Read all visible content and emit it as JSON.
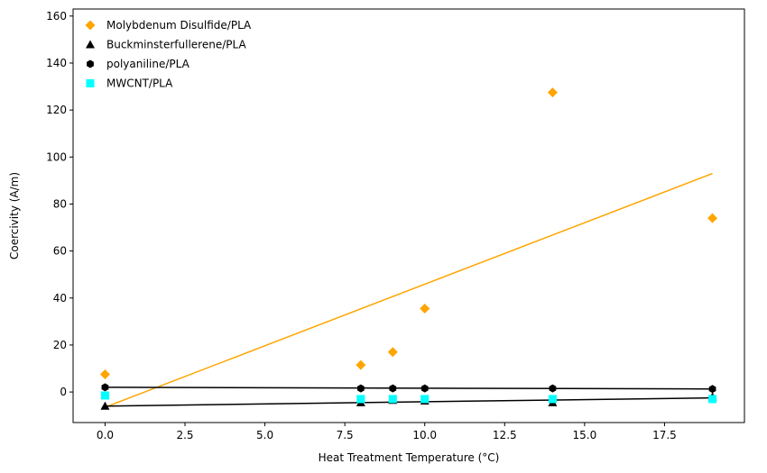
{
  "chart_data": {
    "type": "scatter",
    "title": "",
    "xlabel": "Heat Treatment Temperature (°C)",
    "ylabel": "Coercivity (A/m)",
    "xlim": [
      -1,
      20
    ],
    "ylim": [
      -13,
      163
    ],
    "xticks": [
      0,
      2.5,
      5,
      7.5,
      10,
      12.5,
      15,
      17.5
    ],
    "xtick_labels": [
      "0.0",
      "2.5",
      "5.0",
      "7.5",
      "10.0",
      "12.5",
      "15.0",
      "17.5"
    ],
    "yticks": [
      0,
      20,
      40,
      60,
      80,
      100,
      120,
      140,
      160
    ],
    "ytick_labels": [
      "0",
      "20",
      "40",
      "60",
      "80",
      "100",
      "120",
      "140",
      "160"
    ],
    "grid": false,
    "legend_position": "top-left",
    "series": [
      {
        "name": "Molybdenum Disulfide/PLA",
        "marker": "diamond",
        "color": "#FFA500",
        "x": [
          0,
          8,
          9,
          10,
          14,
          19
        ],
        "y": [
          7.5,
          11.5,
          17,
          35.5,
          127.5,
          74
        ],
        "trend": {
          "x": [
            0,
            19
          ],
          "y": [
            -6.5,
            93
          ],
          "color": "#FFA500"
        }
      },
      {
        "name": "Buckminsterfullerene/PLA",
        "marker": "triangle",
        "color": "#000000",
        "x": [
          0,
          8,
          9,
          10,
          14,
          19
        ],
        "y": [
          -6,
          -4.5,
          -3.5,
          -3.8,
          -4.5,
          -2
        ],
        "trend": {
          "x": [
            0,
            19
          ],
          "y": [
            -6,
            -2.5
          ],
          "color": "#000000"
        }
      },
      {
        "name": "polyaniline/PLA",
        "marker": "hexagon",
        "color": "#000000",
        "x": [
          0,
          8,
          9,
          10,
          14,
          19
        ],
        "y": [
          2,
          1.5,
          1.5,
          1.5,
          1.5,
          1.3
        ],
        "trend": {
          "x": [
            0,
            19
          ],
          "y": [
            2,
            1.3
          ],
          "color": "#000000"
        }
      },
      {
        "name": "MWCNT/PLA",
        "marker": "square",
        "color": "#00FFFF",
        "x": [
          0,
          8,
          9,
          10,
          14,
          19
        ],
        "y": [
          -1.5,
          -3,
          -3,
          -3,
          -3,
          -3
        ],
        "trend": null
      }
    ]
  }
}
